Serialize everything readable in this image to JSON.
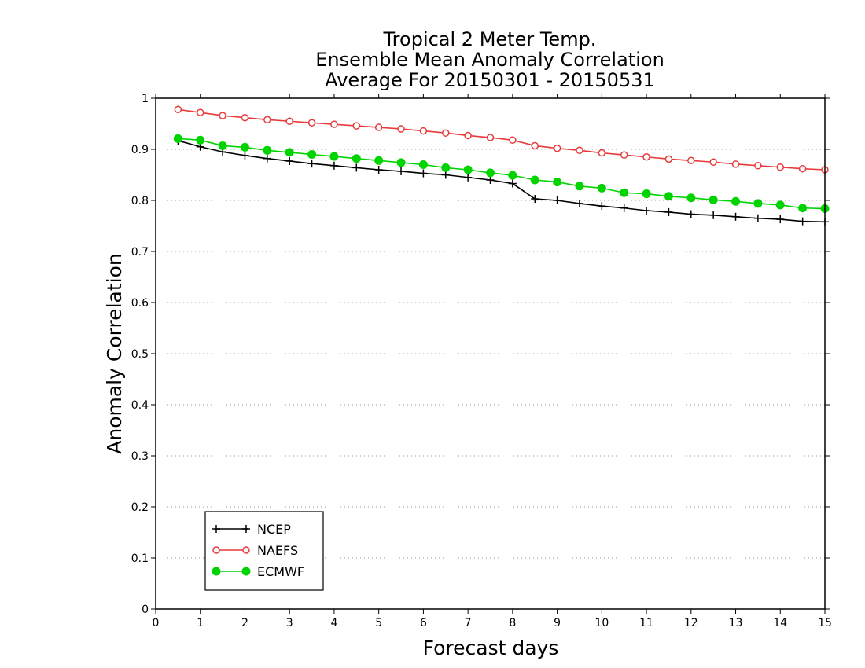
{
  "chart_data": {
    "type": "line",
    "title": [
      "Tropical 2 Meter Temp.",
      "Ensemble Mean Anomaly Correlation",
      "Average For 20150301 - 20150531"
    ],
    "xlabel": "Forecast days",
    "ylabel": "Anomaly Correlation",
    "xlim": [
      0,
      15
    ],
    "ylim": [
      0,
      1
    ],
    "xticks": [
      0,
      1,
      2,
      3,
      4,
      5,
      6,
      7,
      8,
      9,
      10,
      11,
      12,
      13,
      14,
      15
    ],
    "yticks": [
      0,
      0.1,
      0.2,
      0.3,
      0.4,
      0.5,
      0.6,
      0.7,
      0.8,
      0.9,
      1
    ],
    "ytick_labels": [
      "0",
      "0.1",
      "0.2",
      "0.3",
      "0.4",
      "0.5",
      "0.6",
      "0.7",
      "0.8",
      "0.9",
      "1"
    ],
    "grid": "horizontal dotted",
    "legend_position": "bottom-left",
    "x": [
      0.5,
      1,
      1.5,
      2,
      2.5,
      3,
      3.5,
      4,
      4.5,
      5,
      5.5,
      6,
      6.5,
      7,
      7.5,
      8,
      8.5,
      9,
      9.5,
      10,
      10.5,
      11,
      11.5,
      12,
      12.5,
      13,
      13.5,
      14,
      14.5,
      15
    ],
    "series": [
      {
        "name": "NCEP",
        "color": "#000000",
        "marker": "plus",
        "values": [
          0.917,
          0.905,
          0.895,
          0.888,
          0.882,
          0.877,
          0.872,
          0.868,
          0.864,
          0.86,
          0.857,
          0.853,
          0.85,
          0.845,
          0.84,
          0.833,
          0.803,
          0.8,
          0.794,
          0.789,
          0.785,
          0.78,
          0.777,
          0.773,
          0.771,
          0.768,
          0.765,
          0.763,
          0.759,
          0.758
        ]
      },
      {
        "name": "NAEFS",
        "color": "#e83a3a",
        "marker": "open-circle",
        "values": [
          0.978,
          0.972,
          0.966,
          0.962,
          0.958,
          0.955,
          0.952,
          0.949,
          0.946,
          0.943,
          0.94,
          0.936,
          0.932,
          0.927,
          0.923,
          0.918,
          0.907,
          0.902,
          0.898,
          0.893,
          0.889,
          0.885,
          0.881,
          0.878,
          0.875,
          0.871,
          0.868,
          0.865,
          0.862,
          0.86
        ]
      },
      {
        "name": "ECMWF",
        "color": "#00d400",
        "marker": "filled-circle",
        "values": [
          0.921,
          0.918,
          0.907,
          0.904,
          0.898,
          0.894,
          0.89,
          0.886,
          0.882,
          0.878,
          0.874,
          0.87,
          0.864,
          0.86,
          0.854,
          0.849,
          0.84,
          0.836,
          0.828,
          0.824,
          0.815,
          0.813,
          0.808,
          0.805,
          0.801,
          0.798,
          0.794,
          0.791,
          0.785,
          0.784
        ]
      }
    ]
  }
}
